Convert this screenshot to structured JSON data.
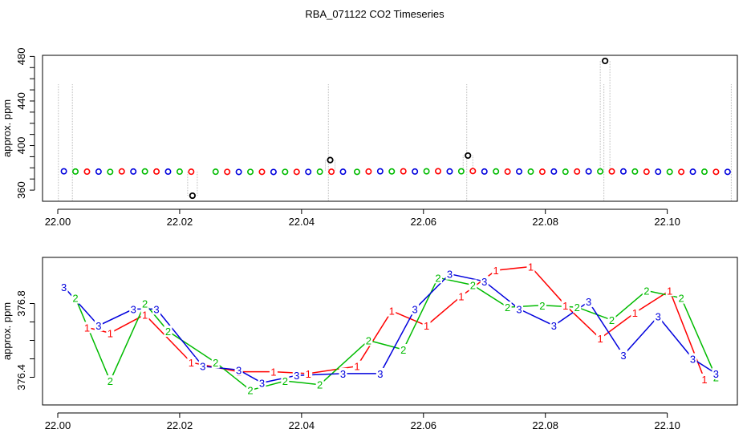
{
  "title": "RBA_071122  CO2 Timeseries",
  "chart_data": [
    {
      "type": "scatter",
      "ylabel": "approx. ppm",
      "xlabel": "",
      "xlim": [
        21.9975,
        22.1115
      ],
      "ylim": [
        350,
        481
      ],
      "x_ticks": [
        "22.00",
        "22.02",
        "22.04",
        "22.06",
        "22.08",
        "22.10"
      ],
      "y_ticks": [
        "360",
        "400",
        "440",
        "480"
      ],
      "x_tick_values": [
        22.0,
        22.02,
        22.04,
        22.06,
        22.08,
        22.1
      ],
      "y_tick_values": [
        360,
        400,
        440,
        480
      ],
      "y_minor_step": 10,
      "marker_colors": {
        "1": "#ff0000",
        "2": "#00bb00",
        "3": "#0000dd",
        "ref": "#000000"
      },
      "drop_line_color": "#bdbdbd",
      "cycle": [
        "3",
        "2",
        "1",
        "3",
        "2",
        "1",
        "3",
        "2",
        "1",
        "3",
        "2",
        "1",
        "ref"
      ],
      "x": [
        22.001,
        22.0029,
        22.0048,
        22.0067,
        22.0086,
        22.0105,
        22.0124,
        22.0143,
        22.0162,
        22.0181,
        22.02,
        22.0219,
        22.0238,
        22.0259,
        22.0278,
        22.0297,
        22.0316,
        22.0335,
        22.0354,
        22.0373,
        22.0392,
        22.0411,
        22.043,
        22.0449,
        22.0468,
        22.0491,
        22.051,
        22.0529,
        22.0548,
        22.0567,
        22.0586,
        22.0605,
        22.0624,
        22.0643,
        22.0662,
        22.0681,
        22.07,
        22.0719,
        22.0738,
        22.0757,
        22.0776,
        22.0795,
        22.0814,
        22.0833,
        22.0852,
        22.0871,
        22.089,
        22.0909,
        22.0928,
        22.0947,
        22.0966,
        22.0985,
        22.1004,
        22.1023,
        22.1042,
        22.1061,
        22.108,
        22.1099
      ],
      "y": [
        376.9,
        376.7,
        376.6,
        376.6,
        376.4,
        376.8,
        376.7,
        376.8,
        376.7,
        376.6,
        376.6,
        376.5,
        null,
        376.5,
        376.4,
        376.3,
        376.4,
        376.4,
        376.3,
        376.4,
        376.4,
        376.4,
        376.5,
        376.5,
        376.5,
        376.4,
        376.7,
        376.9,
        376.8,
        376.9,
        376.7,
        376.9,
        377.0,
        376.8,
        376.9,
        377.1,
        376.7,
        376.8,
        376.6,
        376.7,
        376.6,
        376.5,
        376.7,
        376.5,
        376.7,
        376.8,
        376.8,
        376.8,
        376.8,
        376.7,
        376.5,
        376.5,
        376.4,
        376.4,
        376.5,
        376.5,
        376.4,
        376.4
      ],
      "reference": [
        {
          "x": 22.0221,
          "y": 355.0
        },
        {
          "x": 22.0447,
          "y": 387.0
        },
        {
          "x": 22.0673,
          "y": 391.0
        },
        {
          "x": 22.0898,
          "y": 476.0
        }
      ],
      "drop_lines": [
        22.0001,
        22.0024,
        22.0444,
        22.0671,
        22.0896,
        22.1105
      ]
    },
    {
      "type": "line",
      "ylabel": "approx. ppm",
      "xlabel": "",
      "xlim": [
        21.9975,
        22.1115
      ],
      "ylim": [
        376.25,
        377.05
      ],
      "x_ticks": [
        "22.00",
        "22.02",
        "22.04",
        "22.06",
        "22.08",
        "22.10"
      ],
      "y_ticks": [
        "376.4",
        "376.8"
      ],
      "x_tick_values": [
        22.0,
        22.02,
        22.04,
        22.06,
        22.08,
        22.1
      ],
      "y_tick_values": [
        376.4,
        376.8
      ],
      "y_minor_step": 0.1,
      "series": [
        {
          "name": "1",
          "color": "#ff0000",
          "x": [
            22.0048,
            22.0086,
            22.0143,
            22.0219,
            22.0297,
            22.0354,
            22.0411,
            22.0491,
            22.0548,
            22.0605,
            22.0662,
            22.0719,
            22.0776,
            22.0833,
            22.089,
            22.0947,
            22.1004,
            22.1061
          ],
          "y": [
            376.67,
            376.64,
            376.74,
            376.48,
            376.43,
            376.43,
            376.42,
            376.46,
            376.76,
            376.68,
            376.84,
            376.98,
            377.0,
            376.79,
            376.61,
            376.75,
            376.87,
            376.39
          ]
        },
        {
          "name": "2",
          "color": "#00bb00",
          "x": [
            22.0029,
            22.0086,
            22.0143,
            22.0181,
            22.0259,
            22.0316,
            22.0373,
            22.043,
            22.051,
            22.0567,
            22.0624,
            22.0681,
            22.0738,
            22.0795,
            22.0852,
            22.0909,
            22.0966,
            22.1023,
            22.108
          ],
          "y": [
            376.83,
            376.38,
            376.8,
            376.65,
            376.48,
            376.33,
            376.38,
            376.36,
            376.6,
            376.55,
            376.94,
            376.9,
            376.78,
            376.79,
            376.78,
            376.71,
            376.87,
            376.83,
            376.4
          ]
        },
        {
          "name": "3",
          "color": "#0000dd",
          "x": [
            22.001,
            22.0067,
            22.0124,
            22.0162,
            22.0238,
            22.0297,
            22.0335,
            22.0392,
            22.0468,
            22.0529,
            22.0586,
            22.0643,
            22.07,
            22.0757,
            22.0814,
            22.0871,
            22.0928,
            22.0985,
            22.1042,
            22.108
          ],
          "y": [
            376.89,
            376.68,
            376.77,
            376.77,
            376.46,
            376.44,
            376.37,
            376.41,
            376.42,
            376.42,
            376.77,
            376.96,
            376.92,
            376.77,
            376.68,
            376.81,
            376.52,
            376.73,
            376.5,
            376.42
          ]
        }
      ]
    }
  ]
}
